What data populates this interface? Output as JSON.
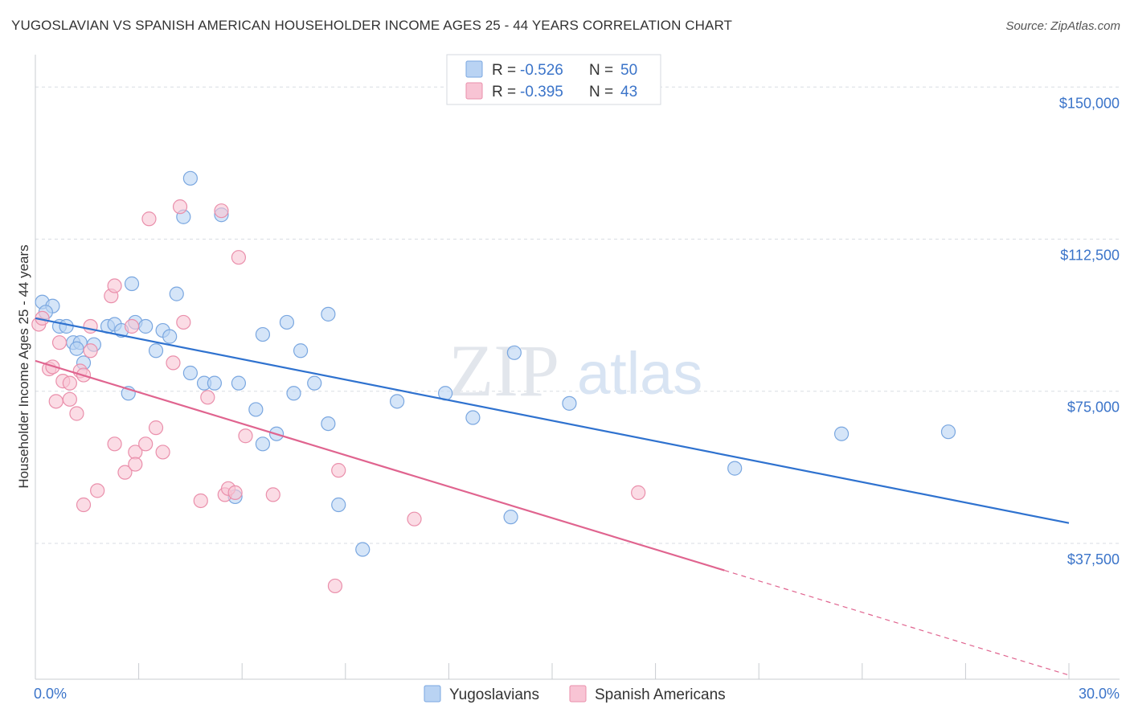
{
  "title": "YUGOSLAVIAN VS SPANISH AMERICAN HOUSEHOLDER INCOME AGES 25 - 44 YEARS CORRELATION CHART",
  "source": "Source: ZipAtlas.com",
  "watermark": {
    "zip": "ZIP",
    "atlas": "atlas"
  },
  "colors": {
    "blue_fill": "#b9d3f3",
    "blue_stroke": "#7aa7e0",
    "blue_line": "#2f72cf",
    "pink_fill": "#f8c4d4",
    "pink_stroke": "#ea8fab",
    "pink_line": "#e0648f",
    "grid": "#d9dde3",
    "tick_label": "#3b74c9"
  },
  "legend_box": {
    "rows": [
      {
        "r_label": "R =",
        "r_value": "-0.526",
        "n_label": "N =",
        "n_value": "50"
      },
      {
        "r_label": "R =",
        "r_value": "-0.395",
        "n_label": "N =",
        "n_value": "43"
      }
    ]
  },
  "chart_data": {
    "type": "scatter",
    "title": "YUGOSLAVIAN VS SPANISH AMERICAN HOUSEHOLDER INCOME AGES 25 - 44 YEARS CORRELATION CHART",
    "xlabel": "",
    "ylabel": "Householder Income Ages 25 - 44 years",
    "xlim": [
      0,
      30
    ],
    "ylim": [
      4000,
      156000
    ],
    "x_tick_labels": [
      "0.0%",
      "30.0%"
    ],
    "y_ticks": [
      37500,
      75000,
      112500,
      150000
    ],
    "y_tick_labels": [
      "$37,500",
      "$75,000",
      "$112,500",
      "$150,000"
    ],
    "grid": true,
    "legend_position": "bottom",
    "series": [
      {
        "name": "Yugoslavians",
        "r": -0.526,
        "n": 50,
        "trend": {
          "x0": 0,
          "y0": 93000,
          "x1": 30,
          "y1": 42500,
          "dash_from": null
        },
        "points": [
          [
            0.2,
            97000
          ],
          [
            0.5,
            96000
          ],
          [
            0.3,
            94500
          ],
          [
            0.7,
            91000
          ],
          [
            0.9,
            91000
          ],
          [
            1.1,
            87000
          ],
          [
            1.3,
            87000
          ],
          [
            1.2,
            85500
          ],
          [
            1.7,
            86500
          ],
          [
            1.4,
            82000
          ],
          [
            2.1,
            91000
          ],
          [
            2.3,
            91500
          ],
          [
            2.5,
            90000
          ],
          [
            2.9,
            92000
          ],
          [
            3.2,
            91000
          ],
          [
            3.7,
            90000
          ],
          [
            3.9,
            88500
          ],
          [
            2.8,
            101500
          ],
          [
            4.1,
            99000
          ],
          [
            3.5,
            85000
          ],
          [
            4.5,
            79500
          ],
          [
            4.3,
            118000
          ],
          [
            4.5,
            127500
          ],
          [
            5.4,
            118500
          ],
          [
            4.9,
            77000
          ],
          [
            5.2,
            77000
          ],
          [
            5.9,
            77000
          ],
          [
            2.7,
            74500
          ],
          [
            6.4,
            70500
          ],
          [
            6.6,
            89000
          ],
          [
            7.3,
            92000
          ],
          [
            7.7,
            85000
          ],
          [
            7.5,
            74500
          ],
          [
            8.1,
            77000
          ],
          [
            8.5,
            94000
          ],
          [
            7.0,
            64500
          ],
          [
            6.6,
            62000
          ],
          [
            8.5,
            67000
          ],
          [
            5.8,
            49000
          ],
          [
            8.8,
            47000
          ],
          [
            9.5,
            36000
          ],
          [
            10.5,
            72500
          ],
          [
            11.9,
            74500
          ],
          [
            12.7,
            68500
          ],
          [
            13.9,
            84500
          ],
          [
            13.8,
            44000
          ],
          [
            15.5,
            72000
          ],
          [
            20.3,
            56000
          ],
          [
            23.4,
            64500
          ],
          [
            26.5,
            65000
          ]
        ]
      },
      {
        "name": "Spanish Americans",
        "r": -0.395,
        "n": 43,
        "trend": {
          "x0": 0,
          "y0": 82500,
          "x1": 30,
          "y1": 5000,
          "dash_from": 20.0
        },
        "points": [
          [
            0.1,
            91500
          ],
          [
            0.2,
            93000
          ],
          [
            0.4,
            80500
          ],
          [
            0.5,
            81000
          ],
          [
            0.6,
            72500
          ],
          [
            0.8,
            77500
          ],
          [
            1.0,
            77000
          ],
          [
            1.0,
            73000
          ],
          [
            1.2,
            69500
          ],
          [
            0.7,
            87000
          ],
          [
            1.3,
            80000
          ],
          [
            1.4,
            79000
          ],
          [
            1.6,
            85000
          ],
          [
            1.6,
            91000
          ],
          [
            2.2,
            98500
          ],
          [
            2.3,
            101000
          ],
          [
            2.8,
            91000
          ],
          [
            1.4,
            47000
          ],
          [
            1.8,
            50500
          ],
          [
            2.3,
            62000
          ],
          [
            2.6,
            55000
          ],
          [
            2.9,
            60000
          ],
          [
            2.9,
            57000
          ],
          [
            3.2,
            62000
          ],
          [
            3.5,
            66000
          ],
          [
            3.7,
            60000
          ],
          [
            3.3,
            117500
          ],
          [
            4.0,
            82000
          ],
          [
            4.2,
            120500
          ],
          [
            4.3,
            92000
          ],
          [
            4.8,
            48000
          ],
          [
            5.0,
            73500
          ],
          [
            5.4,
            119500
          ],
          [
            5.5,
            49500
          ],
          [
            5.6,
            51000
          ],
          [
            5.8,
            50000
          ],
          [
            5.9,
            108000
          ],
          [
            6.1,
            64000
          ],
          [
            6.9,
            49500
          ],
          [
            8.8,
            55500
          ],
          [
            8.7,
            27000
          ],
          [
            11.0,
            43500
          ],
          [
            17.5,
            50000
          ]
        ]
      }
    ]
  }
}
